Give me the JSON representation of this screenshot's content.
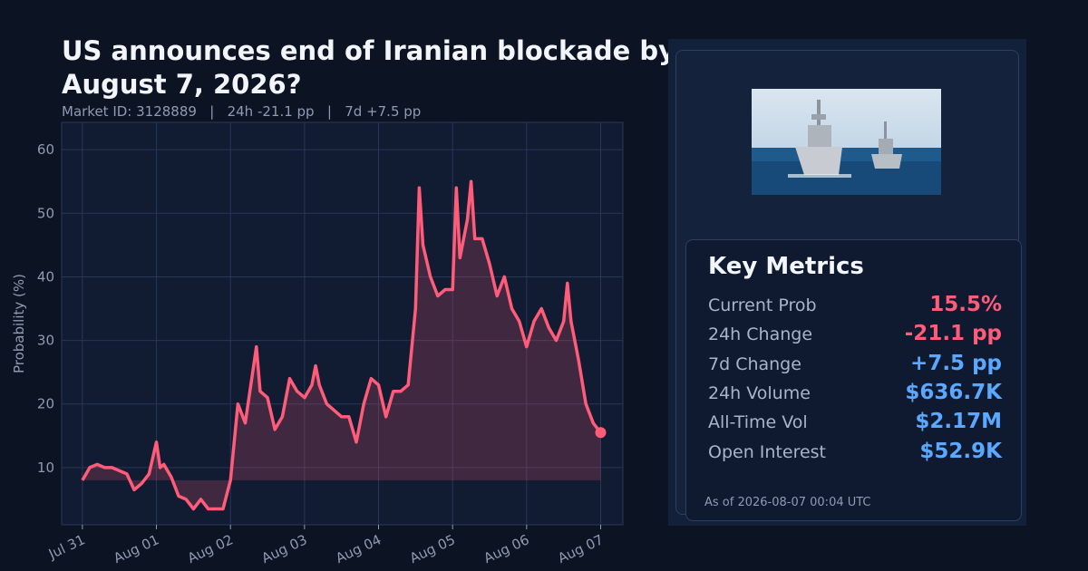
{
  "header": {
    "title": "US announces end of Iranian blockade by August 7, 2026?",
    "subtitle": "Market ID: 3128889   |   24h -21.1 pp   |   7d +7.5 pp"
  },
  "chart_data": {
    "type": "line",
    "ylabel": "Probability (%)",
    "color": "#ff5c7a",
    "grid": true,
    "x": [
      0,
      0.1,
      0.2,
      0.3,
      0.4,
      0.5,
      0.6,
      0.7,
      0.8,
      0.9,
      1.0,
      1.05,
      1.1,
      1.2,
      1.3,
      1.4,
      1.5,
      1.6,
      1.7,
      1.8,
      1.9,
      2.0,
      2.1,
      2.2,
      2.3,
      2.35,
      2.4,
      2.5,
      2.6,
      2.7,
      2.8,
      2.9,
      3.0,
      3.1,
      3.15,
      3.2,
      3.3,
      3.4,
      3.5,
      3.6,
      3.7,
      3.8,
      3.9,
      4.0,
      4.1,
      4.2,
      4.3,
      4.4,
      4.5,
      4.55,
      4.6,
      4.7,
      4.8,
      4.9,
      5.0,
      5.05,
      5.1,
      5.2,
      5.25,
      5.3,
      5.4,
      5.5,
      5.6,
      5.7,
      5.8,
      5.9,
      6.0,
      6.1,
      6.2,
      6.3,
      6.4,
      6.5,
      6.55,
      6.6,
      6.7,
      6.8,
      6.9,
      7.0
    ],
    "values": [
      8,
      10,
      10.5,
      10,
      10,
      9.5,
      9,
      6.5,
      7.5,
      9,
      14,
      10,
      10.5,
      8.5,
      5.5,
      5,
      3.5,
      5,
      3.5,
      3.5,
      3.5,
      8,
      20,
      17,
      25,
      29,
      22,
      21,
      16,
      18,
      24,
      22,
      21,
      23,
      26,
      23,
      20,
      19,
      18,
      18,
      14,
      20,
      24,
      23,
      18,
      22,
      22,
      23,
      35,
      54,
      45,
      40,
      37,
      38,
      38,
      54,
      43,
      49,
      55,
      46,
      46,
      42,
      37,
      40,
      35,
      33,
      29,
      33,
      35,
      32,
      30,
      33,
      39,
      33,
      27,
      20,
      17,
      15.5
    ],
    "xlim": [
      -0.28,
      7.3
    ],
    "xticks": [
      {
        "value": 0,
        "label": "Jul 31"
      },
      {
        "value": 1,
        "label": "Aug 01"
      },
      {
        "value": 2,
        "label": "Aug 02"
      },
      {
        "value": 3,
        "label": "Aug 03"
      },
      {
        "value": 4,
        "label": "Aug 04"
      },
      {
        "value": 5,
        "label": "Aug 05"
      },
      {
        "value": 6,
        "label": "Aug 06"
      },
      {
        "value": 7,
        "label": "Aug 07"
      }
    ],
    "ylim": [
      1,
      64.3
    ],
    "yticks": [
      10,
      20,
      30,
      40,
      50,
      60
    ]
  },
  "metrics": {
    "title": "Key Metrics",
    "rows": [
      {
        "label": "Current Prob",
        "value": "15.5%",
        "color": "#ff5c7a"
      },
      {
        "label": "24h Change",
        "value": "-21.1 pp",
        "color": "#ff5c7a"
      },
      {
        "label": "7d Change",
        "value": "+7.5 pp",
        "color": "#5aa8ff"
      },
      {
        "label": "24h Volume",
        "value": "$636.7K",
        "color": "#5aa8ff"
      },
      {
        "label": "All-Time Vol",
        "value": "$2.17M",
        "color": "#5aa8ff"
      },
      {
        "label": "Open Interest",
        "value": "$52.9K",
        "color": "#5aa8ff"
      }
    ],
    "as_of": "As of 2026-08-07 00:04 UTC"
  }
}
